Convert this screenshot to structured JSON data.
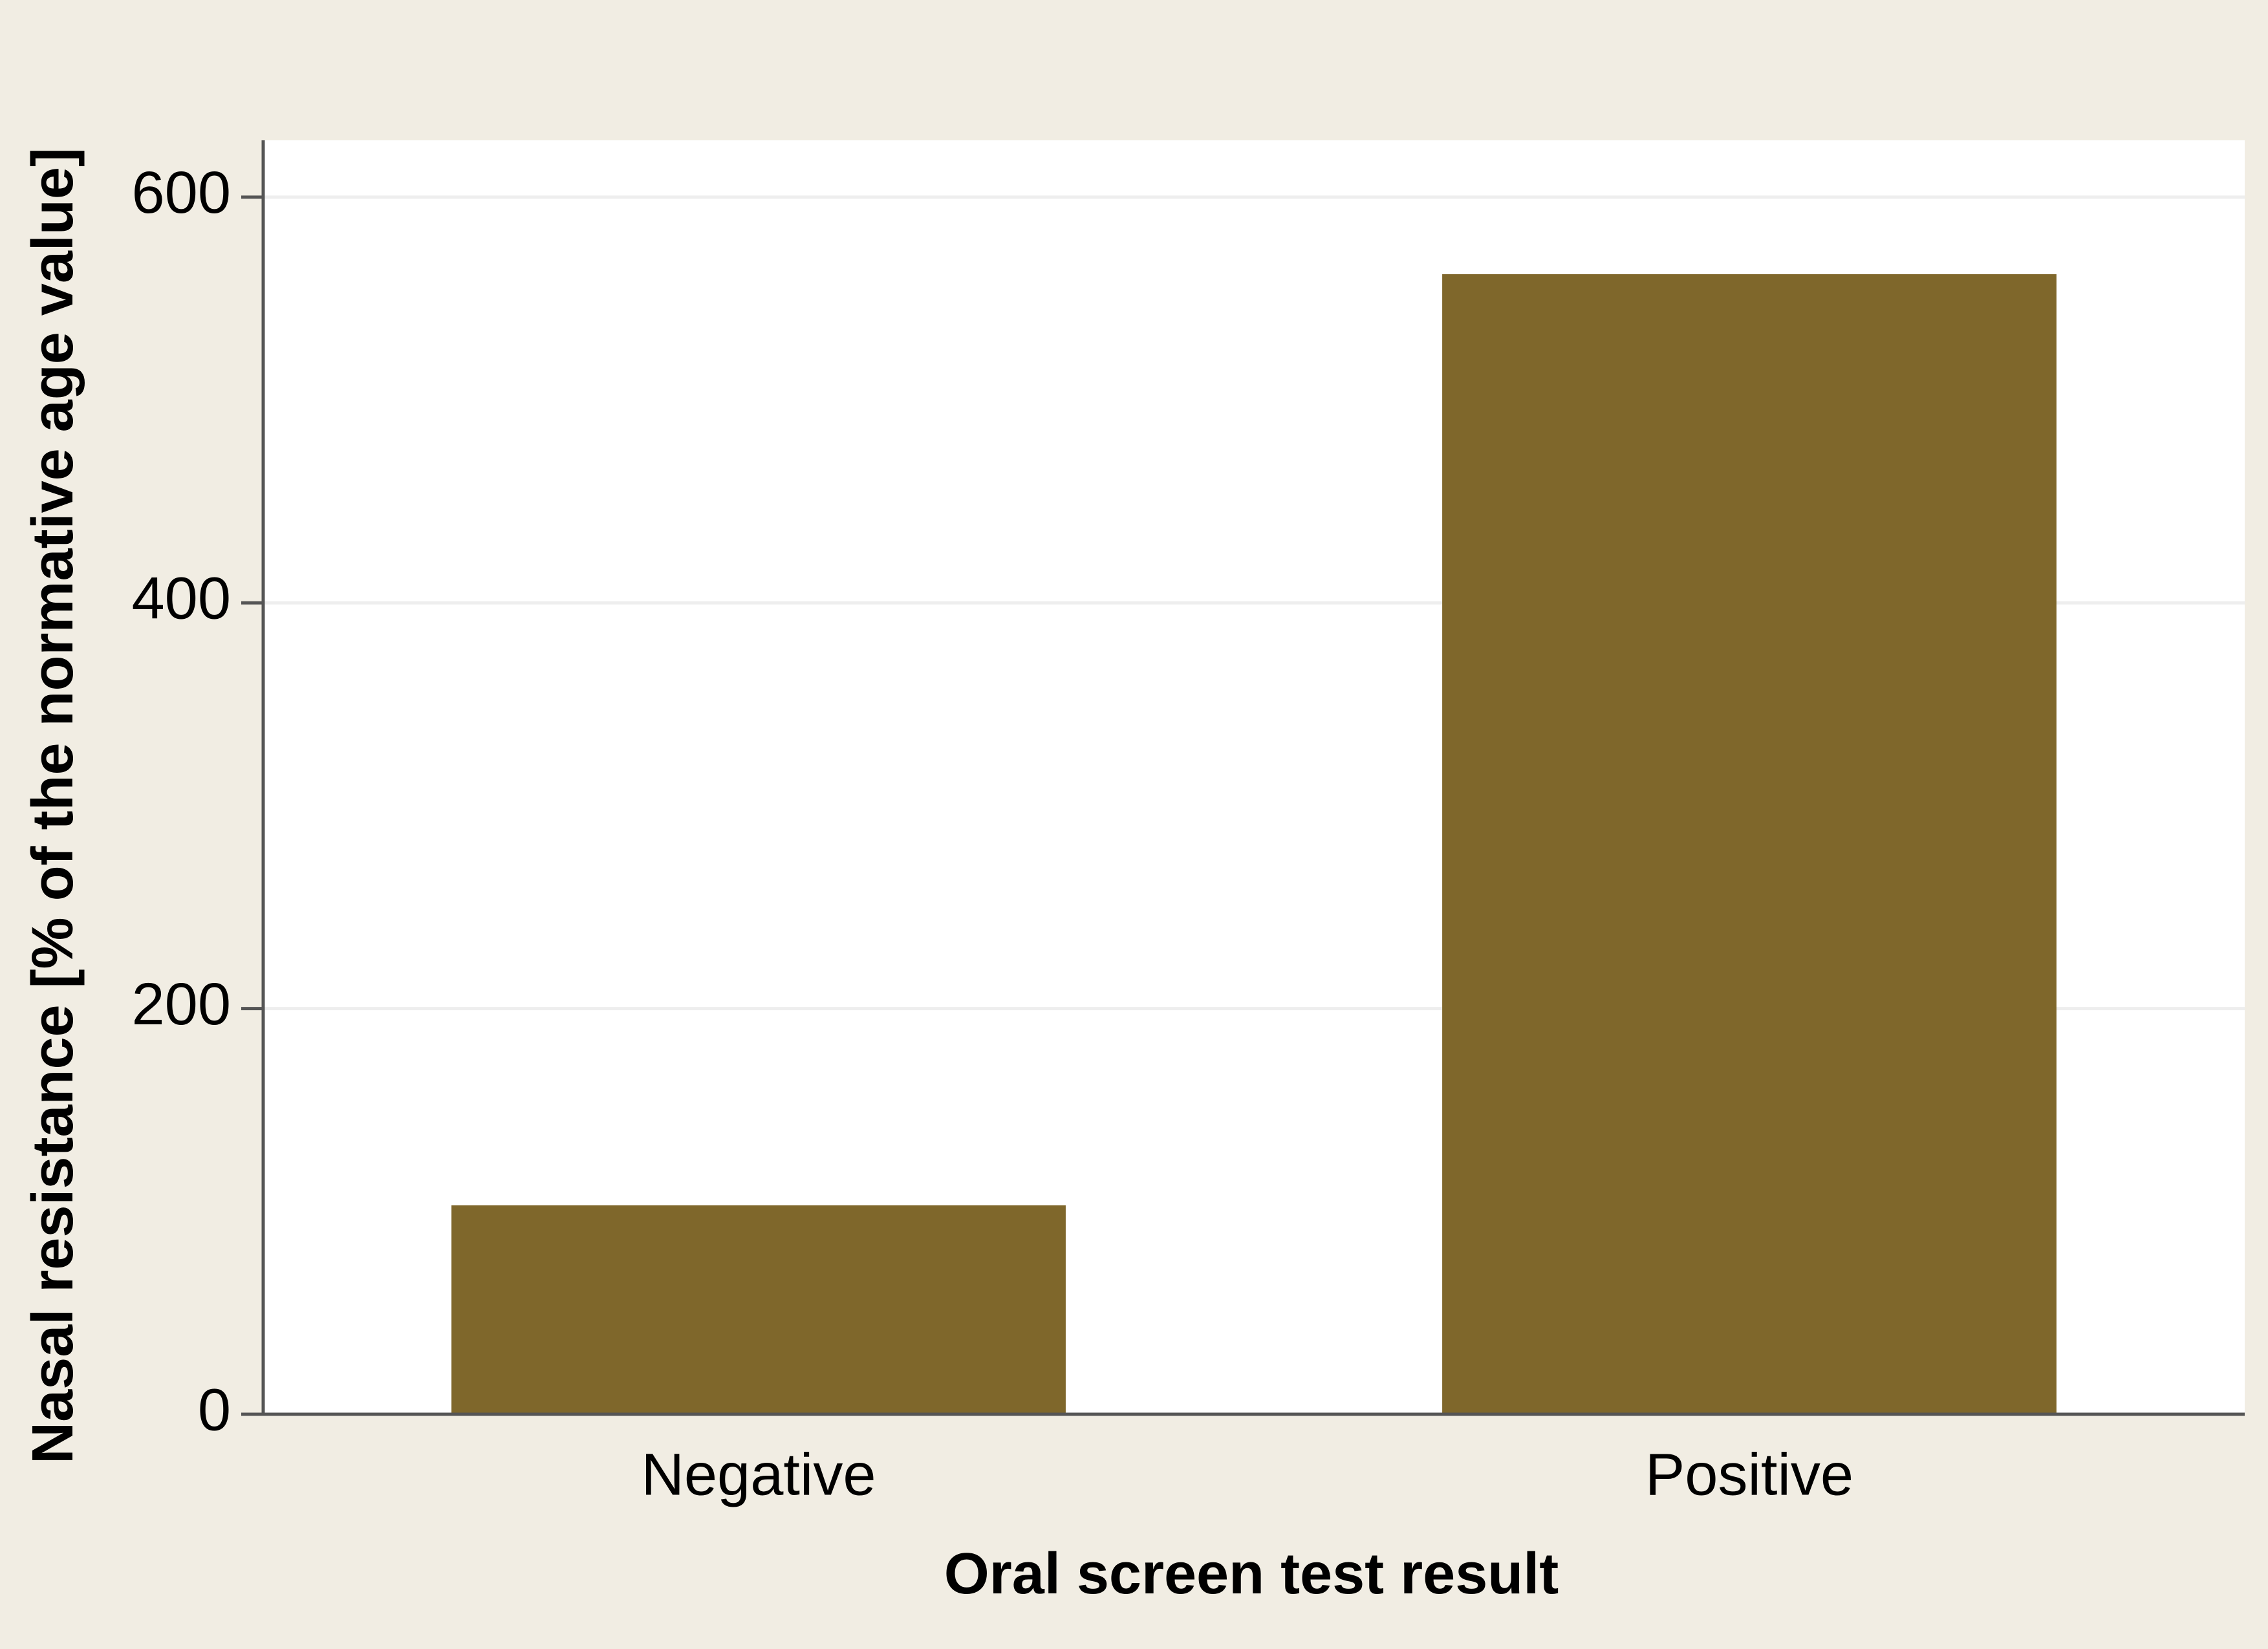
{
  "chart_data": {
    "type": "bar",
    "x_label": "Oral screen test result",
    "y_label": "Nasal resistance [% of the normative age value]",
    "categories": [
      "Negative",
      "Positive"
    ],
    "values": [
      103,
      562
    ],
    "color": "#7f672b",
    "ylim": [
      0,
      628
    ],
    "yticks": [
      0,
      200,
      400,
      600
    ],
    "grid": true
  }
}
